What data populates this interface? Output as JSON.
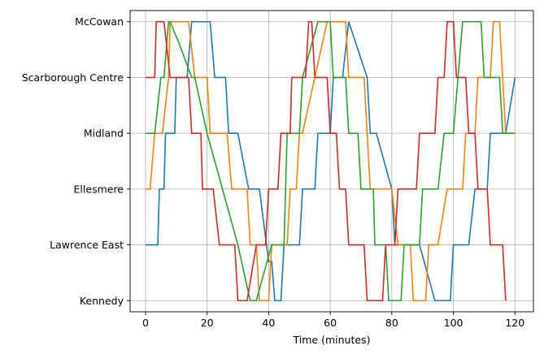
{
  "chart_data": {
    "type": "line",
    "title": "",
    "xlabel": "Time (minutes)",
    "ylabel": "",
    "xlim": [
      -5,
      126
    ],
    "ylim": [
      -0.2,
      5.2
    ],
    "grid": true,
    "x_ticks": [
      0,
      20,
      40,
      60,
      80,
      100,
      120
    ],
    "x_tick_labels": [
      "0",
      "20",
      "40",
      "60",
      "80",
      "100",
      "120"
    ],
    "y_ticks": [
      0,
      1,
      2,
      3,
      4,
      5
    ],
    "y_tick_labels": [
      "Kennedy",
      "Lawrence East",
      "Ellesmere",
      "Midland",
      "Scarborough Centre",
      "McCowan"
    ],
    "series": [
      {
        "color": "#1f77b4",
        "points": [
          [
            0,
            1
          ],
          [
            4,
            1
          ],
          [
            4.5,
            2
          ],
          [
            6,
            2
          ],
          [
            6.5,
            3
          ],
          [
            9.5,
            3
          ],
          [
            10,
            4
          ],
          [
            13.5,
            4
          ],
          [
            15,
            5
          ],
          [
            21,
            5
          ],
          [
            22.5,
            4
          ],
          [
            26,
            4
          ],
          [
            27,
            3
          ],
          [
            30,
            3
          ],
          [
            33.5,
            2
          ],
          [
            37,
            2
          ],
          [
            40,
            0.7
          ],
          [
            41,
            0.7
          ],
          [
            42,
            0
          ],
          [
            44,
            0
          ],
          [
            45,
            1
          ],
          [
            50,
            1
          ],
          [
            51,
            2
          ],
          [
            55,
            2
          ],
          [
            56,
            3
          ],
          [
            60,
            3
          ],
          [
            61,
            4
          ],
          [
            64,
            4
          ],
          [
            66,
            5
          ],
          [
            72,
            4
          ],
          [
            73,
            3
          ],
          [
            75,
            3
          ],
          [
            80,
            2
          ],
          [
            81,
            1
          ],
          [
            89,
            1
          ],
          [
            94,
            0
          ],
          [
            99,
            0
          ],
          [
            100,
            1
          ],
          [
            105,
            1
          ],
          [
            107,
            2
          ],
          [
            111,
            2
          ],
          [
            112,
            3
          ],
          [
            117,
            3
          ],
          [
            120,
            4
          ]
        ]
      },
      {
        "color": "#ff7f0e",
        "points": [
          [
            0,
            2
          ],
          [
            1.5,
            2
          ],
          [
            3,
            3
          ],
          [
            5.5,
            3
          ],
          [
            7.5,
            4
          ],
          [
            8,
            5
          ],
          [
            14,
            5
          ],
          [
            16,
            4
          ],
          [
            20,
            4
          ],
          [
            21,
            3
          ],
          [
            26.5,
            3
          ],
          [
            28,
            2
          ],
          [
            33,
            2
          ],
          [
            34,
            1
          ],
          [
            36,
            1
          ],
          [
            37,
            0
          ],
          [
            40,
            0
          ],
          [
            41,
            1
          ],
          [
            46,
            1
          ],
          [
            47,
            2
          ],
          [
            49,
            2
          ],
          [
            50,
            3
          ],
          [
            51,
            3
          ],
          [
            59,
            5
          ],
          [
            65,
            5
          ],
          [
            66,
            4
          ],
          [
            71,
            4
          ],
          [
            72,
            3
          ],
          [
            73,
            2
          ],
          [
            80,
            2
          ],
          [
            82,
            1
          ],
          [
            86,
            1
          ],
          [
            87,
            0
          ],
          [
            91,
            0
          ],
          [
            92,
            1
          ],
          [
            95,
            1
          ],
          [
            98,
            2
          ],
          [
            103,
            2
          ],
          [
            104,
            3
          ],
          [
            107,
            3
          ],
          [
            108,
            4
          ],
          [
            112,
            4
          ],
          [
            113,
            5
          ],
          [
            115,
            5
          ],
          [
            116,
            4
          ],
          [
            117,
            3
          ],
          [
            120,
            3
          ]
        ]
      },
      {
        "color": "#2ca02c",
        "points": [
          [
            0,
            3
          ],
          [
            3,
            3
          ],
          [
            5,
            4
          ],
          [
            6,
            4
          ],
          [
            7.5,
            5
          ],
          [
            8,
            5
          ],
          [
            11,
            4.6
          ],
          [
            15,
            4
          ],
          [
            16,
            4
          ],
          [
            20,
            3
          ],
          [
            25,
            2
          ],
          [
            30,
            1
          ],
          [
            34,
            0
          ],
          [
            36,
            0
          ],
          [
            41,
            1
          ],
          [
            45,
            1
          ],
          [
            45.5,
            2
          ],
          [
            46,
            3
          ],
          [
            50,
            3
          ],
          [
            51,
            4
          ],
          [
            56,
            5
          ],
          [
            60,
            5
          ],
          [
            61,
            4
          ],
          [
            65,
            4
          ],
          [
            66,
            3
          ],
          [
            69,
            3
          ],
          [
            70,
            2
          ],
          [
            74,
            2
          ],
          [
            74.5,
            1
          ],
          [
            78,
            1
          ],
          [
            79,
            0
          ],
          [
            83,
            0
          ],
          [
            84,
            1
          ],
          [
            89,
            1
          ],
          [
            90,
            2
          ],
          [
            95,
            2
          ],
          [
            97,
            3
          ],
          [
            100,
            3
          ],
          [
            103,
            5
          ],
          [
            109,
            5
          ],
          [
            110,
            4
          ],
          [
            115,
            4
          ],
          [
            116,
            3
          ],
          [
            120,
            3
          ]
        ]
      },
      {
        "color": "#d62728",
        "points": [
          [
            0,
            4
          ],
          [
            3,
            4
          ],
          [
            3.5,
            5
          ],
          [
            6,
            5
          ],
          [
            8,
            4
          ],
          [
            14,
            4
          ],
          [
            15,
            3
          ],
          [
            18,
            3
          ],
          [
            18.5,
            2
          ],
          [
            22,
            2
          ],
          [
            24,
            1
          ],
          [
            29,
            1
          ],
          [
            30,
            0
          ],
          [
            33,
            0
          ],
          [
            36,
            1
          ],
          [
            39,
            1
          ],
          [
            40,
            2
          ],
          [
            43,
            2
          ],
          [
            44,
            3
          ],
          [
            47,
            3
          ],
          [
            47.5,
            4
          ],
          [
            52,
            4
          ],
          [
            53,
            5
          ],
          [
            54,
            5
          ],
          [
            55,
            4
          ],
          [
            59,
            4
          ],
          [
            60,
            3
          ],
          [
            62,
            3
          ],
          [
            63,
            2
          ],
          [
            65,
            2
          ],
          [
            66,
            1
          ],
          [
            71,
            1
          ],
          [
            72,
            0
          ],
          [
            77,
            0
          ],
          [
            78,
            1
          ],
          [
            81,
            1
          ],
          [
            82,
            2
          ],
          [
            88,
            2
          ],
          [
            89,
            3
          ],
          [
            94,
            3
          ],
          [
            95,
            4
          ],
          [
            97,
            4
          ],
          [
            98,
            5
          ],
          [
            100,
            5
          ],
          [
            101,
            4
          ],
          [
            104,
            4
          ],
          [
            105,
            3
          ],
          [
            107,
            3
          ],
          [
            108,
            2
          ],
          [
            111,
            2
          ],
          [
            112,
            1
          ],
          [
            116,
            1
          ],
          [
            117,
            0
          ]
        ]
      }
    ]
  }
}
